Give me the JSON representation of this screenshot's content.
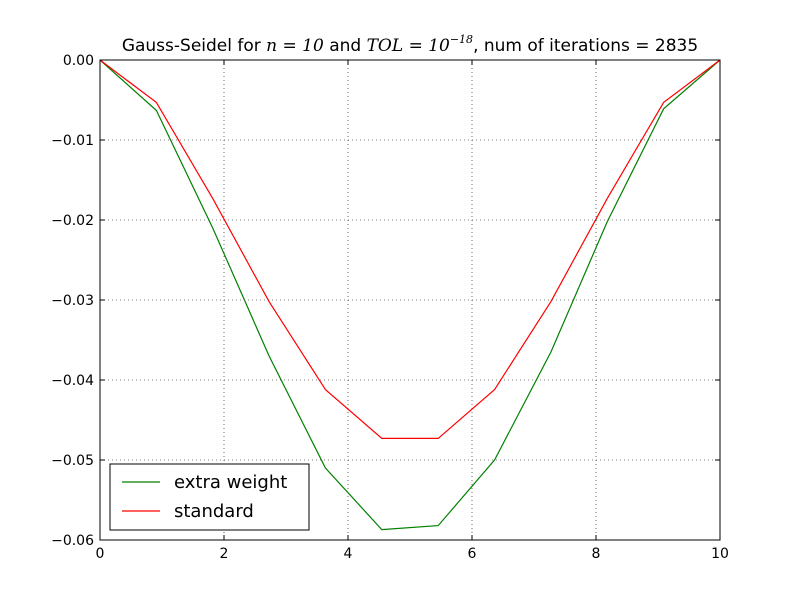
{
  "chart_data": {
    "type": "line",
    "title": {
      "prefix": "Gauss-Seidel for ",
      "math1": "n = 10",
      "middle": " and ",
      "math2_base": "TOL = 10",
      "math2_exp": "−18",
      "suffix": ", num of iterations = 2835"
    },
    "xlabel": "",
    "ylabel": "",
    "xlim": [
      0,
      10
    ],
    "ylim": [
      -0.06,
      0.0
    ],
    "xticks": [
      0,
      2,
      4,
      6,
      8,
      10
    ],
    "xtick_labels": [
      "0",
      "2",
      "4",
      "6",
      "8",
      "10"
    ],
    "yticks": [
      0.0,
      -0.01,
      -0.02,
      -0.03,
      -0.04,
      -0.05,
      -0.06
    ],
    "ytick_labels": [
      "0.00",
      "−0.01",
      "−0.02",
      "−0.03",
      "−0.04",
      "−0.05",
      "−0.06"
    ],
    "grid": true,
    "legend_position": "lower-left",
    "x": [
      0,
      0.909,
      1.818,
      2.727,
      3.636,
      4.545,
      5.455,
      6.364,
      7.273,
      8.182,
      9.091,
      10
    ],
    "series": [
      {
        "name": "extra weight",
        "color": "#008000",
        "values": [
          0.0,
          -0.0063,
          -0.021,
          -0.037,
          -0.051,
          -0.0587,
          -0.0582,
          -0.05,
          -0.0365,
          -0.0202,
          -0.0061,
          0.0
        ]
      },
      {
        "name": "standard",
        "color": "#ff0000",
        "values": [
          0.0,
          -0.0053,
          -0.0173,
          -0.0302,
          -0.0412,
          -0.0473,
          -0.0473,
          -0.0412,
          -0.0302,
          -0.0173,
          -0.0053,
          0.0
        ]
      }
    ]
  }
}
